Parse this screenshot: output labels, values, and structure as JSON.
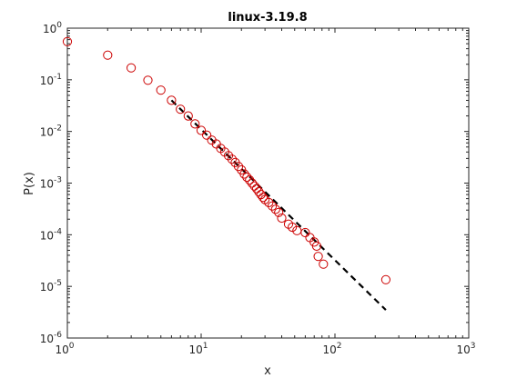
{
  "chart_data": {
    "type": "scatter",
    "title": "linux-3.19.8",
    "xlabel": "x",
    "ylabel": "P(x)",
    "xscale": "log",
    "yscale": "log",
    "xlim": [
      1,
      1000
    ],
    "ylim": [
      1e-06,
      1
    ],
    "grid": false,
    "legend": "none",
    "x_ticks": [
      {
        "value": 1,
        "base": "10",
        "exp": "0"
      },
      {
        "value": 10,
        "base": "10",
        "exp": "1"
      },
      {
        "value": 100,
        "base": "10",
        "exp": "2"
      },
      {
        "value": 1000,
        "base": "10",
        "exp": "3"
      }
    ],
    "y_ticks": [
      {
        "value": 1e-06,
        "base": "10",
        "exp": "-6"
      },
      {
        "value": 1e-05,
        "base": "10",
        "exp": "-5"
      },
      {
        "value": 0.0001,
        "base": "10",
        "exp": "-4"
      },
      {
        "value": 0.001,
        "base": "10",
        "exp": "-3"
      },
      {
        "value": 0.01,
        "base": "10",
        "exp": "-2"
      },
      {
        "value": 0.1,
        "base": "10",
        "exp": "-1"
      },
      {
        "value": 1,
        "base": "10",
        "exp": "0"
      }
    ],
    "series": [
      {
        "kind": "markers",
        "marker": "circle",
        "color": "#cc0000",
        "points": [
          [
            1,
            0.55
          ],
          [
            2,
            0.3
          ],
          [
            3,
            0.17
          ],
          [
            4,
            0.098
          ],
          [
            5,
            0.063
          ],
          [
            6,
            0.04
          ],
          [
            7,
            0.027
          ],
          [
            8,
            0.02
          ],
          [
            9,
            0.014
          ],
          [
            10,
            0.0105
          ],
          [
            11,
            0.0085
          ],
          [
            12,
            0.0068
          ],
          [
            13,
            0.0057
          ],
          [
            14,
            0.0047
          ],
          [
            15,
            0.004
          ],
          [
            16,
            0.0034
          ],
          [
            17,
            0.0029
          ],
          [
            18,
            0.0025
          ],
          [
            19,
            0.0021
          ],
          [
            20,
            0.0018
          ],
          [
            21,
            0.0015
          ],
          [
            22,
            0.0013
          ],
          [
            23,
            0.00115
          ],
          [
            24,
            0.001
          ],
          [
            25,
            0.00088
          ],
          [
            26,
            0.00078
          ],
          [
            27,
            0.00068
          ],
          [
            28,
            0.0006
          ],
          [
            29,
            0.00053
          ],
          [
            30,
            0.00048
          ],
          [
            32,
            0.00042
          ],
          [
            34,
            0.00036
          ],
          [
            36,
            0.00031
          ],
          [
            38,
            0.00027
          ],
          [
            40,
            0.00021
          ],
          [
            45,
            0.00016
          ],
          [
            48,
            0.00014
          ],
          [
            52,
            0.00012
          ],
          [
            60,
            0.00011
          ],
          [
            65,
            8.8e-05
          ],
          [
            70,
            7.2e-05
          ],
          [
            73,
            6e-05
          ],
          [
            75,
            3.8e-05
          ],
          [
            82,
            2.7e-05
          ],
          [
            240,
            1.35e-05
          ]
        ]
      },
      {
        "kind": "fit-line",
        "style": "dashed",
        "color": "#000000",
        "points": [
          [
            6,
            0.04
          ],
          [
            240,
            3.5e-06
          ]
        ]
      }
    ]
  }
}
